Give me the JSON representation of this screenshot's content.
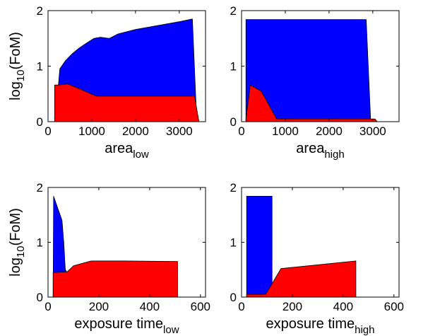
{
  "chart_data": [
    {
      "type": "area",
      "ylabel_base": "log",
      "ylabel_sub": "10",
      "ylabel_rest": "(FoM)",
      "xlabel_base": "area",
      "xlabel_sub": "low",
      "xlim": [
        0,
        3600
      ],
      "ylim": [
        0,
        2
      ],
      "xticks": [
        0,
        1000,
        2000,
        3000
      ],
      "yticks": [
        0,
        1,
        2
      ],
      "series": [
        {
          "color": "#0000ff",
          "x": [
            170,
            270,
            400,
            550,
            700,
            850,
            1050,
            1200,
            1400,
            1600,
            2000,
            2500,
            3000,
            3300,
            3400
          ],
          "upper": [
            0.05,
            0.95,
            1.1,
            1.22,
            1.32,
            1.4,
            1.5,
            1.52,
            1.5,
            1.58,
            1.66,
            1.73,
            1.8,
            1.85,
            0
          ],
          "lower": [
            0,
            0,
            0,
            0,
            0,
            0,
            0,
            0,
            0,
            0,
            0,
            0,
            0,
            0,
            0
          ]
        },
        {
          "color": "#ff0000",
          "x": [
            150,
            240,
            450,
            700,
            1100,
            1500,
            2000,
            3000,
            3350,
            3450
          ],
          "upper": [
            0.66,
            0.66,
            0.68,
            0.6,
            0.46,
            0.46,
            0.46,
            0.46,
            0.46,
            0
          ],
          "lower": [
            0,
            0,
            0,
            0,
            0,
            0,
            0,
            0,
            0,
            0
          ]
        }
      ]
    },
    {
      "type": "area",
      "xlabel_base": "area",
      "xlabel_sub": "high",
      "xlim": [
        0,
        3600
      ],
      "ylim": [
        0,
        2
      ],
      "xticks": [
        0,
        1000,
        2000,
        3000
      ],
      "yticks": [
        0,
        1,
        2
      ],
      "series": [
        {
          "color": "#0000ff",
          "x": [
            100,
            100,
            2850,
            2950,
            2950
          ],
          "upper": [
            0,
            1.84,
            1.84,
            0.05,
            0
          ],
          "lower": [
            0,
            0,
            0,
            0,
            0
          ]
        },
        {
          "color": "#ff0000",
          "x": [
            100,
            200,
            450,
            800,
            1000,
            2000,
            3050,
            3100
          ],
          "upper": [
            0.05,
            0.66,
            0.55,
            0.05,
            0.05,
            0.05,
            0.05,
            0
          ],
          "lower": [
            0,
            0,
            0,
            0,
            0,
            0,
            0,
            0
          ]
        }
      ]
    },
    {
      "type": "area",
      "ylabel_base": "log",
      "ylabel_sub": "10",
      "ylabel_rest": "(FoM)",
      "xlabel_base": "exposure time",
      "xlabel_sub": "low",
      "xlim": [
        0,
        620
      ],
      "ylim": [
        0,
        2
      ],
      "xticks": [
        0,
        200,
        400,
        600
      ],
      "yticks": [
        0,
        1,
        2
      ],
      "series": [
        {
          "color": "#0000ff",
          "x": [
            20,
            22,
            40,
            55,
            62,
            68,
            75,
            20
          ],
          "upper": [
            0,
            1.84,
            1.6,
            1.4,
            1.0,
            0.5,
            0.45,
            0
          ],
          "lower": [
            0,
            0,
            0,
            0,
            0,
            0,
            0,
            0
          ]
        },
        {
          "color": "#ff0000",
          "x": [
            20,
            20,
            75,
            100,
            170,
            300,
            510,
            510
          ],
          "upper": [
            0,
            0.45,
            0.46,
            0.57,
            0.66,
            0.66,
            0.65,
            0
          ],
          "lower": [
            0,
            0,
            0,
            0,
            0,
            0,
            0,
            0
          ]
        }
      ]
    },
    {
      "type": "area",
      "xlabel_base": "exposure time",
      "xlabel_sub": "high",
      "xlim": [
        0,
        620
      ],
      "ylim": [
        0,
        2
      ],
      "xticks": [
        0,
        200,
        400,
        600
      ],
      "yticks": [
        0,
        1,
        2
      ],
      "series": [
        {
          "color": "#0000ff",
          "x": [
            20,
            20,
            120,
            120
          ],
          "upper": [
            0,
            1.84,
            1.84,
            0
          ],
          "lower": [
            0,
            0,
            0,
            0
          ]
        },
        {
          "color": "#ff0000",
          "x": [
            20,
            20,
            95,
            155,
            450,
            450
          ],
          "upper": [
            0,
            0.05,
            0.05,
            0.52,
            0.66,
            0
          ],
          "lower": [
            0,
            0,
            0,
            0,
            0,
            0
          ]
        }
      ]
    }
  ]
}
